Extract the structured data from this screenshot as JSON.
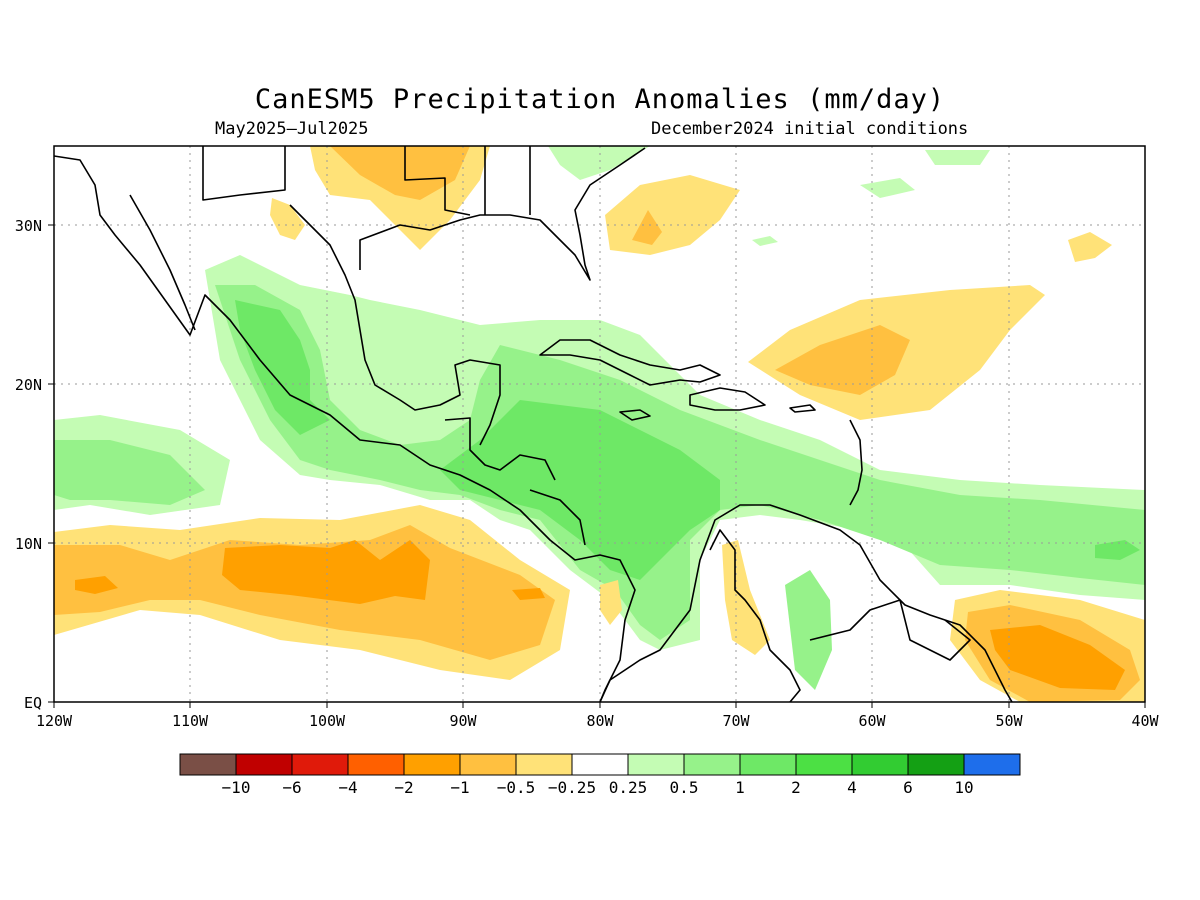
{
  "title": "CanESM5 Precipitation Anomalies (mm/day)",
  "period": "May2025–Jul2025",
  "init": "December2024 initial conditions",
  "map": {
    "lon_range": [
      -120,
      -40
    ],
    "lat_range": [
      0,
      35
    ],
    "x_ticks": [
      "120W",
      "110W",
      "100W",
      "90W",
      "80W",
      "70W",
      "60W",
      "50W",
      "40W"
    ],
    "y_ticks": [
      "EQ",
      "10N",
      "20N",
      "30N"
    ],
    "grid": true
  },
  "colorbar": {
    "colors": [
      "#7a4f46",
      "#c00000",
      "#e01a0a",
      "#ff6000",
      "#ffa000",
      "#ffc040",
      "#ffe278",
      "#ffffff",
      "#c4fcb4",
      "#96f28a",
      "#6ee866",
      "#4ce044",
      "#32cc32",
      "#14a014",
      "#1e6eeb"
    ],
    "labels": [
      "−10",
      "−6",
      "−4",
      "−2",
      "−1",
      "−0.5",
      "−0.25",
      "0.25",
      "0.5",
      "1",
      "2",
      "4",
      "6",
      "10"
    ]
  }
}
